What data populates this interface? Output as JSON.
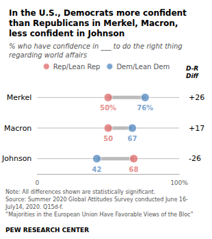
{
  "chart_data": {
    "type": "dumbbell",
    "orientation": "horizontal",
    "title": "In the U.S., Democrats more confident\nthan Republicans in Merkel, Macron,\nless confident in Johnson",
    "subtitle": "% who have confidence in ___ to do the right thing\nregarding world affairs",
    "categories": [
      "Merkel",
      "Macron",
      "Johnson"
    ],
    "series": [
      {
        "name": "Rep/Lean Rep",
        "color": "#E07070",
        "values": [
          50,
          50,
          68
        ],
        "value_labels": [
          "50%",
          "50",
          "68"
        ]
      },
      {
        "name": "Dem/Lean Dem",
        "color": "#5B8EC4",
        "values": [
          76,
          67,
          42
        ],
        "value_labels": [
          "76%",
          "67",
          "42"
        ]
      }
    ],
    "diff_header": "D-R\nDiff",
    "diff_labels": [
      "+26",
      "+17",
      "-26"
    ],
    "xlim": [
      0,
      100
    ],
    "xticks": [
      0,
      {
        "value": 100,
        "label": "100%"
      }
    ],
    "data_labels": true,
    "grid": false,
    "legend": "top",
    "note": "Note: All differences shown are statistically significant.\nSource: Summer 2020 Global Attitudes Survey conducted June 16-\nJuly14, 2020. Q15d-f.\n“Majorities in the European Union Have Favorable Views of the Bloc”",
    "footer": "PEW RESEARCH CENTER"
  }
}
